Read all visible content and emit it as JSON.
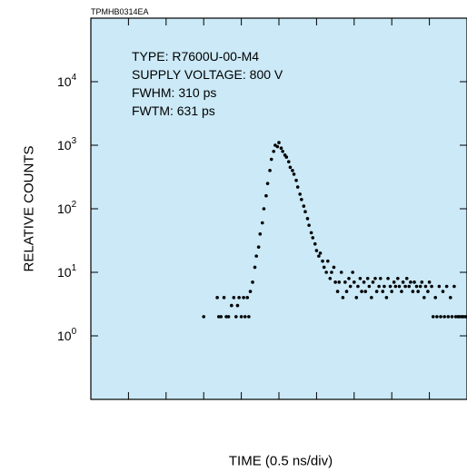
{
  "chart_data": {
    "type": "scatter",
    "figure_code": "TPMHB0314EA",
    "xlabel": "TIME (0.5 ns/div)",
    "ylabel": "RELATIVE COUNTS",
    "y_scale": "log",
    "ylim": [
      0.1,
      100000
    ],
    "xlim": [
      0,
      5
    ],
    "y_ticks": [
      {
        "value": 1,
        "base": "10",
        "exp": "0"
      },
      {
        "value": 10,
        "base": "10",
        "exp": "1"
      },
      {
        "value": 100,
        "base": "10",
        "exp": "2"
      },
      {
        "value": 1000,
        "base": "10",
        "exp": "3"
      },
      {
        "value": 10000,
        "base": "10",
        "exp": "4"
      }
    ],
    "annotations": [
      "TYPE: R7600U-00-M4",
      "SUPPLY VOLTAGE: 800 V",
      "FWHM: 310 ps",
      "FWTM: 631 ps"
    ],
    "background_color": "#cbe9f7",
    "marker_color": "#000000",
    "grid": false,
    "series": [
      {
        "values": [
          [
            1.5,
            2
          ],
          [
            1.68,
            4
          ],
          [
            1.7,
            2
          ],
          [
            1.73,
            2
          ],
          [
            1.77,
            4
          ],
          [
            1.8,
            2
          ],
          [
            1.83,
            2
          ],
          [
            1.87,
            3
          ],
          [
            1.9,
            4
          ],
          [
            1.93,
            2
          ],
          [
            1.95,
            3
          ],
          [
            1.97,
            4
          ],
          [
            2.0,
            2
          ],
          [
            2.03,
            4
          ],
          [
            2.05,
            2
          ],
          [
            2.08,
            4
          ],
          [
            2.1,
            2
          ],
          [
            2.12,
            5
          ],
          [
            2.15,
            7
          ],
          [
            2.18,
            12
          ],
          [
            2.2,
            18
          ],
          [
            2.23,
            25
          ],
          [
            2.25,
            40
          ],
          [
            2.28,
            60
          ],
          [
            2.3,
            100
          ],
          [
            2.33,
            160
          ],
          [
            2.35,
            250
          ],
          [
            2.38,
            400
          ],
          [
            2.4,
            600
          ],
          [
            2.43,
            800
          ],
          [
            2.45,
            1000
          ],
          [
            2.48,
            950
          ],
          [
            2.5,
            1100
          ],
          [
            2.53,
            900
          ],
          [
            2.55,
            800
          ],
          [
            2.58,
            700
          ],
          [
            2.6,
            650
          ],
          [
            2.63,
            550
          ],
          [
            2.65,
            450
          ],
          [
            2.68,
            400
          ],
          [
            2.7,
            350
          ],
          [
            2.73,
            280
          ],
          [
            2.75,
            220
          ],
          [
            2.78,
            170
          ],
          [
            2.8,
            140
          ],
          [
            2.83,
            110
          ],
          [
            2.85,
            90
          ],
          [
            2.88,
            70
          ],
          [
            2.9,
            55
          ],
          [
            2.93,
            42
          ],
          [
            2.95,
            35
          ],
          [
            2.98,
            28
          ],
          [
            3.0,
            22
          ],
          [
            3.03,
            18
          ],
          [
            3.05,
            20
          ],
          [
            3.08,
            15
          ],
          [
            3.1,
            12
          ],
          [
            3.13,
            10
          ],
          [
            3.15,
            15
          ],
          [
            3.18,
            8
          ],
          [
            3.2,
            10
          ],
          [
            3.23,
            12
          ],
          [
            3.25,
            7
          ],
          [
            3.28,
            5
          ],
          [
            3.3,
            7
          ],
          [
            3.33,
            10
          ],
          [
            3.35,
            4
          ],
          [
            3.38,
            7
          ],
          [
            3.4,
            5
          ],
          [
            3.43,
            8
          ],
          [
            3.45,
            6
          ],
          [
            3.48,
            10
          ],
          [
            3.5,
            7
          ],
          [
            3.53,
            4
          ],
          [
            3.55,
            6
          ],
          [
            3.58,
            8
          ],
          [
            3.6,
            5
          ],
          [
            3.63,
            7
          ],
          [
            3.65,
            5
          ],
          [
            3.68,
            8
          ],
          [
            3.7,
            6
          ],
          [
            3.73,
            4
          ],
          [
            3.75,
            7
          ],
          [
            3.78,
            8
          ],
          [
            3.8,
            5
          ],
          [
            3.83,
            6
          ],
          [
            3.85,
            8
          ],
          [
            3.88,
            5
          ],
          [
            3.9,
            6
          ],
          [
            3.93,
            4
          ],
          [
            3.95,
            8
          ],
          [
            3.98,
            6
          ],
          [
            4.0,
            5
          ],
          [
            4.03,
            7
          ],
          [
            4.05,
            6
          ],
          [
            4.08,
            8
          ],
          [
            4.1,
            6
          ],
          [
            4.13,
            5
          ],
          [
            4.15,
            7
          ],
          [
            4.18,
            6
          ],
          [
            4.2,
            8
          ],
          [
            4.23,
            6
          ],
          [
            4.25,
            7
          ],
          [
            4.28,
            5
          ],
          [
            4.3,
            7
          ],
          [
            4.33,
            6
          ],
          [
            4.35,
            5
          ],
          [
            4.38,
            6
          ],
          [
            4.4,
            7
          ],
          [
            4.43,
            4
          ],
          [
            4.45,
            6
          ],
          [
            4.48,
            5
          ],
          [
            4.5,
            7
          ],
          [
            4.53,
            6
          ],
          [
            4.55,
            2
          ],
          [
            4.58,
            4
          ],
          [
            4.6,
            2
          ],
          [
            4.63,
            6
          ],
          [
            4.65,
            2
          ],
          [
            4.68,
            5
          ],
          [
            4.7,
            2
          ],
          [
            4.73,
            6
          ],
          [
            4.75,
            2
          ],
          [
            4.78,
            4
          ],
          [
            4.8,
            2
          ],
          [
            4.83,
            6
          ],
          [
            4.85,
            2
          ],
          [
            4.88,
            2
          ],
          [
            4.9,
            2
          ],
          [
            4.93,
            2
          ],
          [
            4.95,
            2
          ],
          [
            4.98,
            2
          ]
        ]
      }
    ]
  }
}
